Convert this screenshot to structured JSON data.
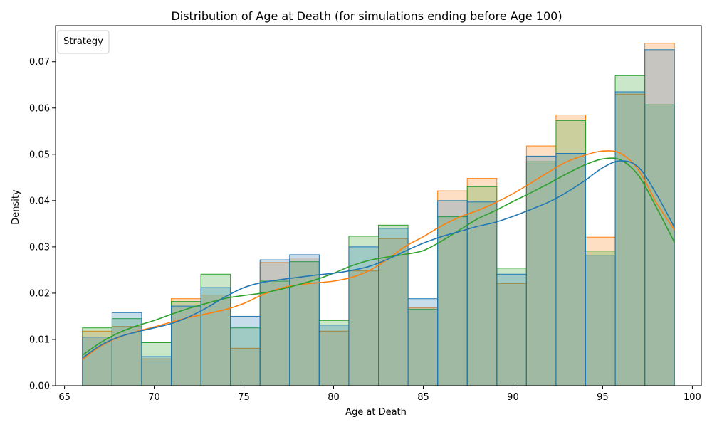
{
  "chart_data": {
    "type": "bar",
    "title": "Distribution of Age at Death (for simulations ending before Age 100)",
    "xlabel": "Age at Death",
    "ylabel": "Density",
    "xlim": [
      64.5,
      100.5
    ],
    "ylim": [
      0,
      0.0778
    ],
    "xticks": [
      65,
      70,
      75,
      80,
      85,
      90,
      95,
      100
    ],
    "yticks": [
      0.0,
      0.01,
      0.02,
      0.03,
      0.04,
      0.05,
      0.06,
      0.07
    ],
    "ytick_labels": [
      "0.00",
      "0.01",
      "0.02",
      "0.03",
      "0.04",
      "0.05",
      "0.06",
      "0.07"
    ],
    "grid": false,
    "legend": {
      "title": "Strategy",
      "placement": "top-left"
    },
    "bin_edges": [
      66,
      67.65,
      69.3,
      70.95,
      72.6,
      74.25,
      75.9,
      77.55,
      79.2,
      80.85,
      82.5,
      84.15,
      85.8,
      87.45,
      89.1,
      90.75,
      92.4,
      94.05,
      95.7,
      97.35,
      99
    ],
    "series": [
      {
        "color": "#ff7f0e",
        "values": [
          0.0118,
          0.0128,
          0.0058,
          0.0188,
          0.0196,
          0.0081,
          0.0266,
          0.0276,
          0.0118,
          0.0248,
          0.0318,
          0.0168,
          0.0421,
          0.0448,
          0.0221,
          0.0518,
          0.0585,
          0.0321,
          0.063,
          0.074
        ],
        "kde_x": [
          66,
          67,
          68,
          69,
          70,
          71,
          72,
          73,
          74,
          75,
          76,
          77,
          78,
          79,
          80,
          81,
          82,
          83,
          84,
          85,
          86,
          87,
          88,
          89,
          90,
          91,
          92,
          93,
          94,
          95,
          96,
          97,
          98,
          99
        ],
        "kde_y": [
          0.0057,
          0.0085,
          0.0104,
          0.0117,
          0.0127,
          0.0138,
          0.0148,
          0.0156,
          0.0165,
          0.0178,
          0.0196,
          0.021,
          0.0218,
          0.0222,
          0.0226,
          0.0234,
          0.0249,
          0.0273,
          0.0301,
          0.0322,
          0.0345,
          0.0364,
          0.0378,
          0.0395,
          0.0415,
          0.0438,
          0.0462,
          0.0484,
          0.0498,
          0.0507,
          0.0502,
          0.0466,
          0.0395,
          0.0337
        ]
      },
      {
        "color": "#2ca02c",
        "values": [
          0.0125,
          0.0145,
          0.0093,
          0.0182,
          0.0241,
          0.0125,
          0.0226,
          0.0268,
          0.0141,
          0.0323,
          0.0347,
          0.0165,
          0.0365,
          0.043,
          0.0254,
          0.0484,
          0.0573,
          0.0291,
          0.067,
          0.0607
        ],
        "kde_x": [
          66,
          67,
          68,
          69,
          70,
          71,
          72,
          73,
          74,
          75,
          76,
          77,
          78,
          79,
          80,
          81,
          82,
          83,
          84,
          85,
          86,
          87,
          88,
          89,
          90,
          91,
          92,
          93,
          94,
          95,
          96,
          97,
          98,
          99
        ],
        "kde_y": [
          0.0066,
          0.0093,
          0.0114,
          0.0129,
          0.0141,
          0.0155,
          0.0168,
          0.0179,
          0.0189,
          0.0195,
          0.02,
          0.0208,
          0.0218,
          0.0229,
          0.0243,
          0.0259,
          0.0271,
          0.0278,
          0.0284,
          0.0292,
          0.0312,
          0.0336,
          0.036,
          0.0378,
          0.0398,
          0.0417,
          0.0437,
          0.0458,
          0.0477,
          0.049,
          0.0488,
          0.0454,
          0.0385,
          0.031
        ]
      },
      {
        "color": "#1f77b4",
        "values": [
          0.0105,
          0.0158,
          0.0063,
          0.0172,
          0.0212,
          0.015,
          0.0272,
          0.0283,
          0.0131,
          0.03,
          0.034,
          0.0188,
          0.04,
          0.0397,
          0.0241,
          0.0496,
          0.0502,
          0.0282,
          0.0635,
          0.0726
        ],
        "kde_x": [
          66,
          67,
          68,
          69,
          70,
          71,
          72,
          73,
          74,
          75,
          76,
          77,
          78,
          79,
          80,
          81,
          82,
          83,
          84,
          85,
          86,
          87,
          88,
          89,
          90,
          91,
          92,
          93,
          94,
          95,
          96,
          97,
          98,
          99
        ],
        "kde_y": [
          0.006,
          0.0087,
          0.0105,
          0.0116,
          0.0125,
          0.0135,
          0.015,
          0.017,
          0.0193,
          0.0212,
          0.0223,
          0.0229,
          0.0234,
          0.0239,
          0.0243,
          0.0249,
          0.0258,
          0.0273,
          0.0291,
          0.0308,
          0.0322,
          0.0333,
          0.0344,
          0.0353,
          0.0366,
          0.0381,
          0.0397,
          0.0418,
          0.0443,
          0.0471,
          0.0486,
          0.0472,
          0.0414,
          0.0342
        ]
      }
    ]
  }
}
